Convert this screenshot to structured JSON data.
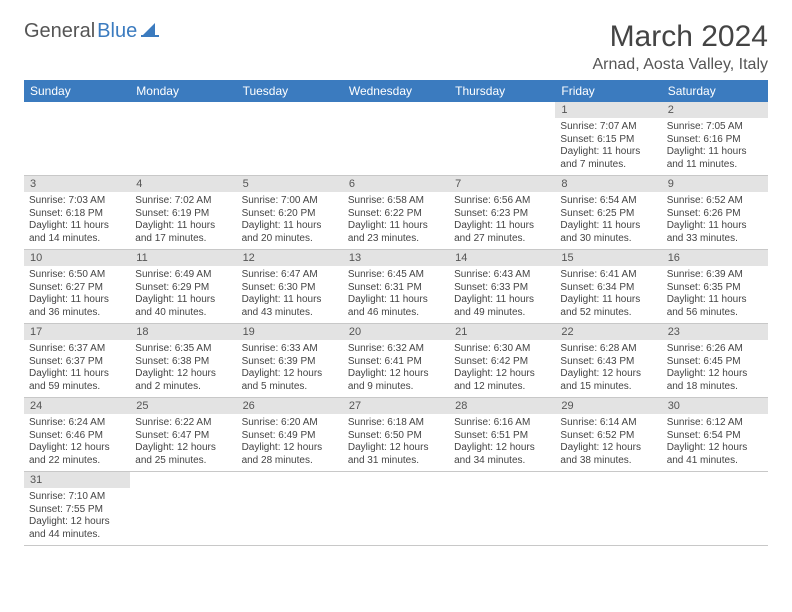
{
  "logo": {
    "general": "General",
    "blue": "Blue"
  },
  "title": "March 2024",
  "location": "Arnad, Aosta Valley, Italy",
  "weekdays": [
    "Sunday",
    "Monday",
    "Tuesday",
    "Wednesday",
    "Thursday",
    "Friday",
    "Saturday"
  ],
  "colors": {
    "header_bg": "#3b7bbf",
    "header_fg": "#ffffff",
    "daynum_bg": "#e3e3e3",
    "text": "#444444",
    "border": "#c8c8c8",
    "logo_gray": "#555555",
    "logo_blue": "#3b7bbf"
  },
  "typography": {
    "title_fontsize": 30,
    "location_fontsize": 16,
    "weekday_fontsize": 12,
    "daynum_fontsize": 11,
    "cell_fontsize": 10
  },
  "weeks": [
    {
      "nums": [
        "",
        "",
        "",
        "",
        "",
        "1",
        "2"
      ],
      "cells": [
        "",
        "",
        "",
        "",
        "",
        "Sunrise: 7:07 AM\nSunset: 6:15 PM\nDaylight: 11 hours\nand 7 minutes.",
        "Sunrise: 7:05 AM\nSunset: 6:16 PM\nDaylight: 11 hours\nand 11 minutes."
      ]
    },
    {
      "nums": [
        "3",
        "4",
        "5",
        "6",
        "7",
        "8",
        "9"
      ],
      "cells": [
        "Sunrise: 7:03 AM\nSunset: 6:18 PM\nDaylight: 11 hours\nand 14 minutes.",
        "Sunrise: 7:02 AM\nSunset: 6:19 PM\nDaylight: 11 hours\nand 17 minutes.",
        "Sunrise: 7:00 AM\nSunset: 6:20 PM\nDaylight: 11 hours\nand 20 minutes.",
        "Sunrise: 6:58 AM\nSunset: 6:22 PM\nDaylight: 11 hours\nand 23 minutes.",
        "Sunrise: 6:56 AM\nSunset: 6:23 PM\nDaylight: 11 hours\nand 27 minutes.",
        "Sunrise: 6:54 AM\nSunset: 6:25 PM\nDaylight: 11 hours\nand 30 minutes.",
        "Sunrise: 6:52 AM\nSunset: 6:26 PM\nDaylight: 11 hours\nand 33 minutes."
      ]
    },
    {
      "nums": [
        "10",
        "11",
        "12",
        "13",
        "14",
        "15",
        "16"
      ],
      "cells": [
        "Sunrise: 6:50 AM\nSunset: 6:27 PM\nDaylight: 11 hours\nand 36 minutes.",
        "Sunrise: 6:49 AM\nSunset: 6:29 PM\nDaylight: 11 hours\nand 40 minutes.",
        "Sunrise: 6:47 AM\nSunset: 6:30 PM\nDaylight: 11 hours\nand 43 minutes.",
        "Sunrise: 6:45 AM\nSunset: 6:31 PM\nDaylight: 11 hours\nand 46 minutes.",
        "Sunrise: 6:43 AM\nSunset: 6:33 PM\nDaylight: 11 hours\nand 49 minutes.",
        "Sunrise: 6:41 AM\nSunset: 6:34 PM\nDaylight: 11 hours\nand 52 minutes.",
        "Sunrise: 6:39 AM\nSunset: 6:35 PM\nDaylight: 11 hours\nand 56 minutes."
      ]
    },
    {
      "nums": [
        "17",
        "18",
        "19",
        "20",
        "21",
        "22",
        "23"
      ],
      "cells": [
        "Sunrise: 6:37 AM\nSunset: 6:37 PM\nDaylight: 11 hours\nand 59 minutes.",
        "Sunrise: 6:35 AM\nSunset: 6:38 PM\nDaylight: 12 hours\nand 2 minutes.",
        "Sunrise: 6:33 AM\nSunset: 6:39 PM\nDaylight: 12 hours\nand 5 minutes.",
        "Sunrise: 6:32 AM\nSunset: 6:41 PM\nDaylight: 12 hours\nand 9 minutes.",
        "Sunrise: 6:30 AM\nSunset: 6:42 PM\nDaylight: 12 hours\nand 12 minutes.",
        "Sunrise: 6:28 AM\nSunset: 6:43 PM\nDaylight: 12 hours\nand 15 minutes.",
        "Sunrise: 6:26 AM\nSunset: 6:45 PM\nDaylight: 12 hours\nand 18 minutes."
      ]
    },
    {
      "nums": [
        "24",
        "25",
        "26",
        "27",
        "28",
        "29",
        "30"
      ],
      "cells": [
        "Sunrise: 6:24 AM\nSunset: 6:46 PM\nDaylight: 12 hours\nand 22 minutes.",
        "Sunrise: 6:22 AM\nSunset: 6:47 PM\nDaylight: 12 hours\nand 25 minutes.",
        "Sunrise: 6:20 AM\nSunset: 6:49 PM\nDaylight: 12 hours\nand 28 minutes.",
        "Sunrise: 6:18 AM\nSunset: 6:50 PM\nDaylight: 12 hours\nand 31 minutes.",
        "Sunrise: 6:16 AM\nSunset: 6:51 PM\nDaylight: 12 hours\nand 34 minutes.",
        "Sunrise: 6:14 AM\nSunset: 6:52 PM\nDaylight: 12 hours\nand 38 minutes.",
        "Sunrise: 6:12 AM\nSunset: 6:54 PM\nDaylight: 12 hours\nand 41 minutes."
      ]
    },
    {
      "nums": [
        "31",
        "",
        "",
        "",
        "",
        "",
        ""
      ],
      "cells": [
        "Sunrise: 7:10 AM\nSunset: 7:55 PM\nDaylight: 12 hours\nand 44 minutes.",
        "",
        "",
        "",
        "",
        "",
        ""
      ]
    }
  ]
}
